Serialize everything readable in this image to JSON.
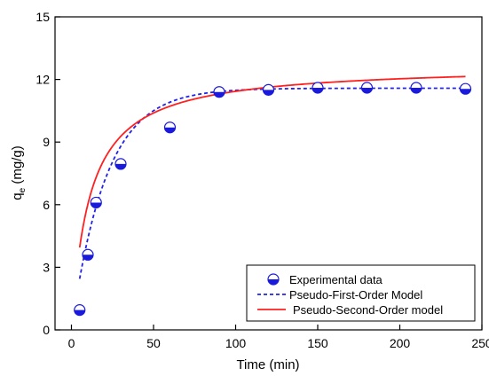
{
  "chart_data": {
    "type": "scatter",
    "title": "",
    "xlabel": "Time (min)",
    "ylabel_main": "q",
    "ylabel_sub": "e",
    "ylabel_unit": " (mg/g)",
    "xlim": [
      -10,
      250
    ],
    "ylim": [
      0,
      15
    ],
    "xticks": [
      0,
      50,
      100,
      150,
      200,
      250
    ],
    "yticks": [
      0,
      3,
      6,
      9,
      12,
      15
    ],
    "grid": false,
    "legend_position": "bottom-right",
    "series": [
      {
        "name": "Experimental data",
        "kind": "markers",
        "color": "#1a1adc",
        "x": [
          5,
          10,
          15,
          30,
          60,
          90,
          120,
          150,
          180,
          210,
          240
        ],
        "y": [
          0.95,
          3.6,
          6.1,
          7.95,
          9.7,
          11.4,
          11.5,
          11.6,
          11.6,
          11.6,
          11.55
        ]
      },
      {
        "name": "Pseudo-First-Order Model",
        "kind": "dashed-line",
        "color": "#2323e6",
        "model": "pfo",
        "qe": 11.58,
        "k1": 0.0475,
        "x_start": 5,
        "x_end": 240
      },
      {
        "name": "Pseudo-Second-Order model",
        "kind": "solid-line",
        "color": "#ff2020",
        "model": "pso",
        "qe": 12.7,
        "k2": 0.0071,
        "x_start": 5,
        "x_end": 240
      }
    ]
  }
}
